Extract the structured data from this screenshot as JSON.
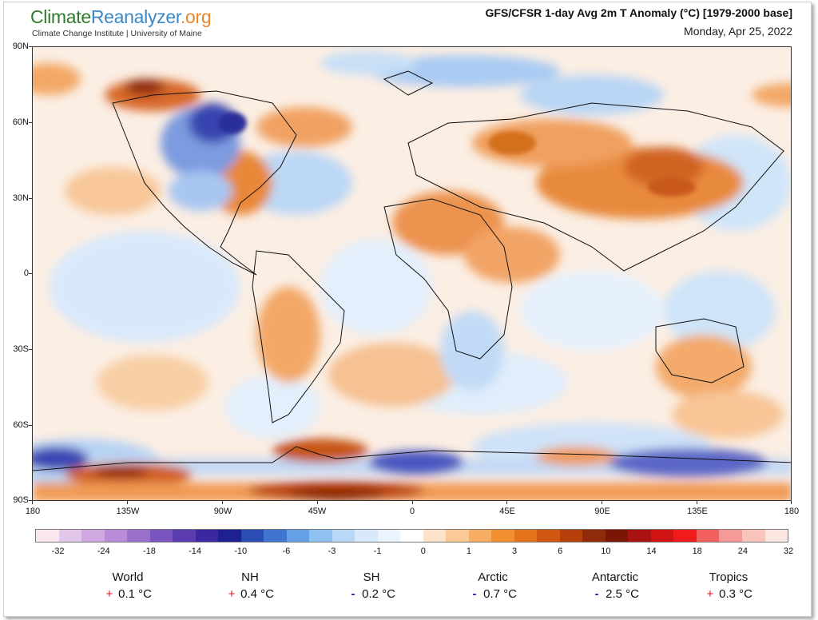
{
  "header": {
    "logo_part1": "Climate",
    "logo_part2": "Reanalyzer",
    "logo_part3": ".org",
    "subtitle": "Climate Change Institute | University of Maine",
    "title": "GFS/CFSR 1-day Avg 2m T Anomaly (°C) [1979-2000 base]",
    "date": "Monday, Apr 25, 2022"
  },
  "axes": {
    "lat_labels": [
      "90N",
      "60N",
      "30N",
      "0",
      "30S",
      "60S",
      "90S"
    ],
    "lon_labels": [
      "180",
      "135W",
      "90W",
      "45W",
      "0",
      "45E",
      "90E",
      "135E",
      "180"
    ]
  },
  "colorbar": {
    "colors": [
      "#fbe8ef",
      "#e3c7ea",
      "#cfa8e2",
      "#b98bd8",
      "#9a70cc",
      "#7a55bf",
      "#5a3bb0",
      "#3a28a0",
      "#1f2090",
      "#2c4cb5",
      "#3f75d0",
      "#64a0e5",
      "#8fc2f2",
      "#b7d8f7",
      "#d7e9fb",
      "#ecf5fd",
      "#ffffff",
      "#fde3c9",
      "#fbc995",
      "#f8ad65",
      "#f2902f",
      "#e5731a",
      "#cf5711",
      "#b5400c",
      "#902b0a",
      "#7a1605",
      "#a81212",
      "#d01414",
      "#f01c1c",
      "#f26060",
      "#f59a96",
      "#f8c4bc",
      "#fbe6e2"
    ],
    "labels": [
      "-32",
      "-24",
      "-18",
      "-14",
      "-10",
      "-6",
      "-3",
      "-1",
      "0",
      "1",
      "3",
      "6",
      "10",
      "14",
      "18",
      "24",
      "32"
    ]
  },
  "stats": [
    {
      "name": "World",
      "sign": "+",
      "value": "0.1 °C",
      "sign_color": "#e01010"
    },
    {
      "name": "NH",
      "sign": "+",
      "value": "0.4 °C",
      "sign_color": "#e01010"
    },
    {
      "name": "SH",
      "sign": "-",
      "value": "0.2 °C",
      "sign_color": "#1520d0"
    },
    {
      "name": "Arctic",
      "sign": "-",
      "value": "0.7 °C",
      "sign_color": "#1520d0"
    },
    {
      "name": "Antarctic",
      "sign": "-",
      "value": "2.5 °C",
      "sign_color": "#1520d0"
    },
    {
      "name": "Tropics",
      "sign": "+",
      "value": "0.3 °C",
      "sign_color": "#e01010"
    }
  ]
}
